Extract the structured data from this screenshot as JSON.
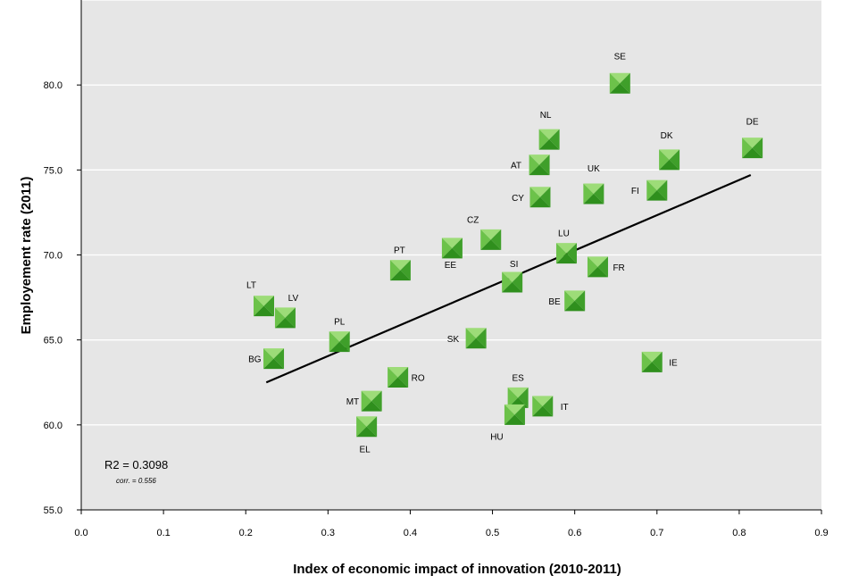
{
  "chart_data": {
    "type": "scatter",
    "title": "",
    "xlabel": "Index of economic impact of innovation (2010-2011)",
    "ylabel": "Employement rate (2011)",
    "xlim": [
      0.0,
      0.9
    ],
    "ylim": [
      55.0,
      85.0
    ],
    "x_ticks": [
      "0.0",
      "0.1",
      "0.2",
      "0.3",
      "0.4",
      "0.5",
      "0.6",
      "0.7",
      "0.8",
      "0.9"
    ],
    "y_ticks": [
      "55.0",
      "60.0",
      "65.0",
      "70.0",
      "75.0",
      "80.0"
    ],
    "grid": "horizontal",
    "points": [
      {
        "label": "SE",
        "x": 0.655,
        "y": 80.1
      },
      {
        "label": "NL",
        "x": 0.569,
        "y": 76.8
      },
      {
        "label": "DE",
        "x": 0.816,
        "y": 76.3
      },
      {
        "label": "DK",
        "x": 0.715,
        "y": 75.6
      },
      {
        "label": "AT",
        "x": 0.557,
        "y": 75.3
      },
      {
        "label": "FI",
        "x": 0.7,
        "y": 73.8
      },
      {
        "label": "UK",
        "x": 0.623,
        "y": 73.6
      },
      {
        "label": "CY",
        "x": 0.558,
        "y": 73.4
      },
      {
        "label": "CZ",
        "x": 0.498,
        "y": 70.9
      },
      {
        "label": "EE",
        "x": 0.451,
        "y": 70.4
      },
      {
        "label": "LU",
        "x": 0.59,
        "y": 70.1
      },
      {
        "label": "FR",
        "x": 0.628,
        "y": 69.3
      },
      {
        "label": "PT",
        "x": 0.388,
        "y": 69.1
      },
      {
        "label": "SI",
        "x": 0.524,
        "y": 68.4
      },
      {
        "label": "BE",
        "x": 0.6,
        "y": 67.3
      },
      {
        "label": "LT",
        "x": 0.222,
        "y": 67.0
      },
      {
        "label": "LV",
        "x": 0.248,
        "y": 66.3
      },
      {
        "label": "SK",
        "x": 0.48,
        "y": 65.1
      },
      {
        "label": "PL",
        "x": 0.314,
        "y": 64.9
      },
      {
        "label": "BG",
        "x": 0.234,
        "y": 63.9
      },
      {
        "label": "IE",
        "x": 0.694,
        "y": 63.7
      },
      {
        "label": "RO",
        "x": 0.385,
        "y": 62.8
      },
      {
        "label": "ES",
        "x": 0.531,
        "y": 61.6
      },
      {
        "label": "MT",
        "x": 0.353,
        "y": 61.4
      },
      {
        "label": "IT",
        "x": 0.561,
        "y": 61.1
      },
      {
        "label": "HU",
        "x": 0.527,
        "y": 60.6
      },
      {
        "label": "EL",
        "x": 0.347,
        "y": 59.9
      }
    ],
    "trendline": {
      "x": [
        0.225,
        0.814
      ],
      "y": [
        62.5,
        74.7
      ]
    },
    "annotations": {
      "r2": "R2 = 0.3098",
      "corr": "corr. = 0.556"
    },
    "colors": {
      "plot_bg": "#e6e6e6",
      "marker_light": "#8fd36b",
      "marker_dark": "#2f8f1d",
      "trendline": "#000000"
    }
  }
}
